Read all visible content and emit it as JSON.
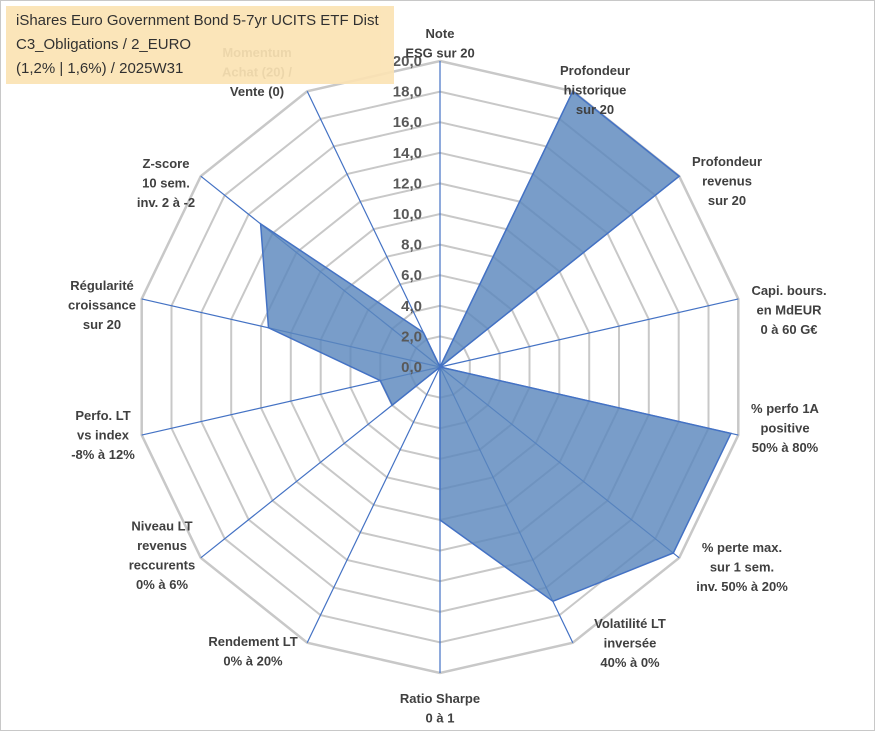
{
  "title_lines": [
    "iShares Euro Government Bond 5-7yr UCITS ETF Dist",
    "C3_Obligations / 2_EURO",
    "(1,2% | 1,6%) / 2025W31"
  ],
  "chart_data": {
    "type": "radar",
    "rlim": [
      0,
      20
    ],
    "ticks": [
      "0,0",
      "2,0",
      "4,0",
      "6,0",
      "8,0",
      "10,0",
      "12,0",
      "14,0",
      "16,0",
      "18,0",
      "20,0"
    ],
    "grid": true,
    "legend": "none",
    "colors": {
      "fill": "#5b87bd",
      "line": "#4472c4",
      "grid": "#c8c8c8"
    },
    "axes": [
      [
        "Note",
        "ESG sur 20"
      ],
      [
        "Profondeur",
        "historique",
        "sur 20"
      ],
      [
        "Profondeur",
        "revenus",
        "sur 20"
      ],
      [
        "Capi. bours.",
        "en MdEUR",
        "0 à 60 G€"
      ],
      [
        "% perfo 1A",
        "positive",
        "50% à 80%"
      ],
      [
        "% perte max.",
        "sur 1 sem.",
        "inv. 50% à 20%"
      ],
      [
        "Volatilité LT",
        "inversée",
        "40% à 0%"
      ],
      [
        "Ratio Sharpe",
        "0 à 1"
      ],
      [
        "Rendement LT",
        "0% à 20%"
      ],
      [
        "Niveau LT",
        "revenus",
        "reccurents",
        "0% à 6%"
      ],
      [
        "Perfo. LT",
        "vs index",
        "-8% à 12%"
      ],
      [
        "Régularité",
        "croissance",
        "sur 20"
      ],
      [
        "Z-score",
        "10 sem.",
        "inv. 2 à -2"
      ],
      [
        "Momentum",
        "Achat (20) /",
        "Vente (0)"
      ]
    ],
    "values": [
      0,
      20,
      20,
      0,
      19.5,
      19.5,
      17,
      10,
      0,
      4,
      4,
      11.5,
      15,
      2.5
    ]
  }
}
